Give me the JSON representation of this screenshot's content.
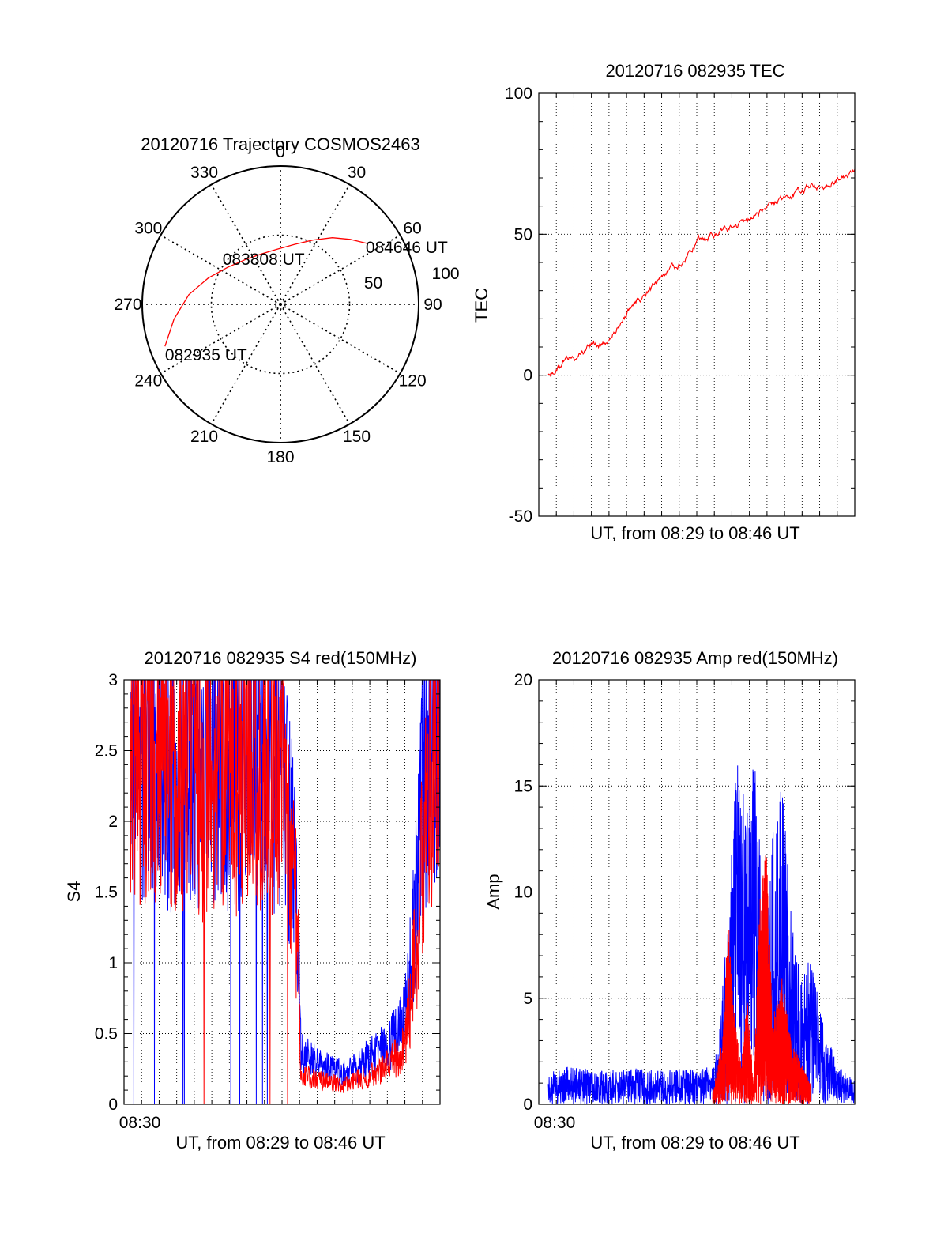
{
  "colors": {
    "series_red": "#ff0000",
    "series_blue": "#0000ff",
    "axes": "#000000",
    "grid": "#000000",
    "background": "#ffffff"
  },
  "chart_data": [
    {
      "id": "polar",
      "type": "scatter",
      "projection": "polar",
      "title": "20120716 Trajectory COSMOS2463",
      "angle_ticks": [
        "0",
        "30",
        "60",
        "90",
        "120",
        "150",
        "180",
        "210",
        "240",
        "270",
        "300",
        "330"
      ],
      "radial_ticks": [
        "50",
        "100"
      ],
      "grid": true,
      "series": [
        {
          "color": "#ff0000",
          "points": [
            {
              "azimuth": 250,
              "elevation": 10
            },
            {
              "azimuth": 262,
              "elevation": 20
            },
            {
              "azimuth": 276,
              "elevation": 30
            },
            {
              "azimuth": 290,
              "elevation": 40
            },
            {
              "azimuth": 305,
              "elevation": 48
            },
            {
              "azimuth": 322,
              "elevation": 53
            },
            {
              "azimuth": 340,
              "elevation": 55
            },
            {
              "azimuth": 357,
              "elevation": 54
            },
            {
              "azimuth": 13,
              "elevation": 50
            },
            {
              "azimuth": 27,
              "elevation": 43
            },
            {
              "azimuth": 38,
              "elevation": 35
            },
            {
              "azimuth": 47,
              "elevation": 28
            },
            {
              "azimuth": 55,
              "elevation": 21
            }
          ]
        }
      ],
      "annotations": [
        {
          "text": "082935 UT",
          "azimuth": 250,
          "elevation": 10
        },
        {
          "text": "083808 UT",
          "azimuth": 340,
          "elevation": 55
        },
        {
          "text": "084646 UT",
          "azimuth": 55,
          "elevation": 21
        }
      ]
    },
    {
      "id": "tec",
      "type": "line",
      "title": "20120716 082935 TEC",
      "xlabel": "UT, from 08:29 to 08:46 UT",
      "ylabel": "TEC",
      "ylim": [
        -50,
        100
      ],
      "yticks": [
        -50,
        0,
        50,
        100
      ],
      "xlim": [
        0,
        1
      ],
      "x_tick_labels": [],
      "grid": true,
      "series": [
        {
          "color": "#ff0000",
          "x": [
            0.03,
            0.06,
            0.1,
            0.14,
            0.17,
            0.2,
            0.22,
            0.26,
            0.3,
            0.34,
            0.38,
            0.42,
            0.46,
            0.5,
            0.55,
            0.6,
            0.65,
            0.7,
            0.75,
            0.8,
            0.85,
            0.9,
            0.95,
            1.0
          ],
          "values": [
            0,
            3,
            6,
            8,
            12,
            10,
            12,
            19,
            25,
            29,
            33,
            37,
            41,
            48,
            50,
            52,
            55,
            58,
            61,
            64,
            66,
            68,
            70,
            73
          ]
        }
      ]
    },
    {
      "id": "s4",
      "type": "line",
      "title": "20120716 082935 S4 red(150MHz)",
      "xlabel": "UT, from 08:29 to 08:46 UT",
      "ylabel": "S4",
      "ylim": [
        0,
        3
      ],
      "yticks": [
        "0",
        "0.5",
        "1",
        "1.5",
        "2",
        "2.5",
        "3"
      ],
      "xlim": [
        0,
        1
      ],
      "x_tick_labels": [
        "08:30"
      ],
      "grid": true,
      "series": [
        {
          "color": "#0000ff",
          "x": [
            0.02,
            0.05,
            0.08,
            0.12,
            0.15,
            0.2,
            0.25,
            0.3,
            0.35,
            0.4,
            0.45,
            0.5,
            0.52,
            0.54,
            0.55,
            0.56,
            0.6,
            0.65,
            0.7,
            0.75,
            0.8,
            0.85,
            0.88,
            0.9,
            0.92,
            0.94,
            0.96,
            0.98,
            1.0
          ],
          "values": [
            2.6,
            2.4,
            2.7,
            2.5,
            2.3,
            2.6,
            2.2,
            2.5,
            2.4,
            2.6,
            2.3,
            2.5,
            2.0,
            1.6,
            1.2,
            0.35,
            0.3,
            0.25,
            0.22,
            0.3,
            0.35,
            0.45,
            0.55,
            0.8,
            1.3,
            2.0,
            2.6,
            2.8,
            2.9
          ]
        },
        {
          "color": "#ff0000",
          "x": [
            0.02,
            0.08,
            0.15,
            0.2,
            0.25,
            0.3,
            0.35,
            0.4,
            0.45,
            0.5,
            0.53,
            0.55,
            0.56,
            0.6,
            0.65,
            0.7,
            0.75,
            0.8,
            0.85,
            0.88,
            0.9,
            0.92,
            0.94,
            0.96,
            0.98,
            1.0
          ],
          "values": [
            2.5,
            2.6,
            2.4,
            2.5,
            2.3,
            2.6,
            2.4,
            2.5,
            2.4,
            2.3,
            1.8,
            1.2,
            0.2,
            0.18,
            0.15,
            0.14,
            0.18,
            0.22,
            0.3,
            0.4,
            0.6,
            1.0,
            1.6,
            2.2,
            2.6,
            2.8
          ]
        }
      ]
    },
    {
      "id": "amp",
      "type": "line",
      "title": "20120716 082935 Amp red(150MHz)",
      "xlabel": "UT, from 08:29 to 08:46 UT",
      "ylabel": "Amp",
      "ylim": [
        0,
        20
      ],
      "yticks": [
        0,
        5,
        10,
        15,
        20
      ],
      "xlim": [
        0,
        1
      ],
      "x_tick_labels": [
        "08:30"
      ],
      "grid": true,
      "series": [
        {
          "color": "#0000ff",
          "x": [
            0.03,
            0.1,
            0.2,
            0.3,
            0.4,
            0.5,
            0.55,
            0.57,
            0.6,
            0.63,
            0.66,
            0.68,
            0.7,
            0.72,
            0.74,
            0.77,
            0.8,
            0.83,
            0.86,
            0.9,
            0.94,
            0.97,
            1.0
          ],
          "values": [
            1.5,
            1.8,
            1.6,
            1.7,
            1.6,
            1.7,
            1.8,
            3,
            10,
            17,
            14,
            18,
            12,
            8,
            13,
            15,
            9,
            6,
            7,
            4,
            2,
            1.5,
            1.2
          ]
        },
        {
          "color": "#ff0000",
          "x": [
            0.55,
            0.58,
            0.6,
            0.62,
            0.64,
            0.66,
            0.68,
            0.7,
            0.72,
            0.74,
            0.77,
            0.8,
            0.83,
            0.86
          ],
          "values": [
            0.5,
            3,
            9,
            4,
            2,
            5,
            1,
            10,
            12,
            4,
            6,
            3,
            2,
            1
          ]
        }
      ]
    }
  ]
}
